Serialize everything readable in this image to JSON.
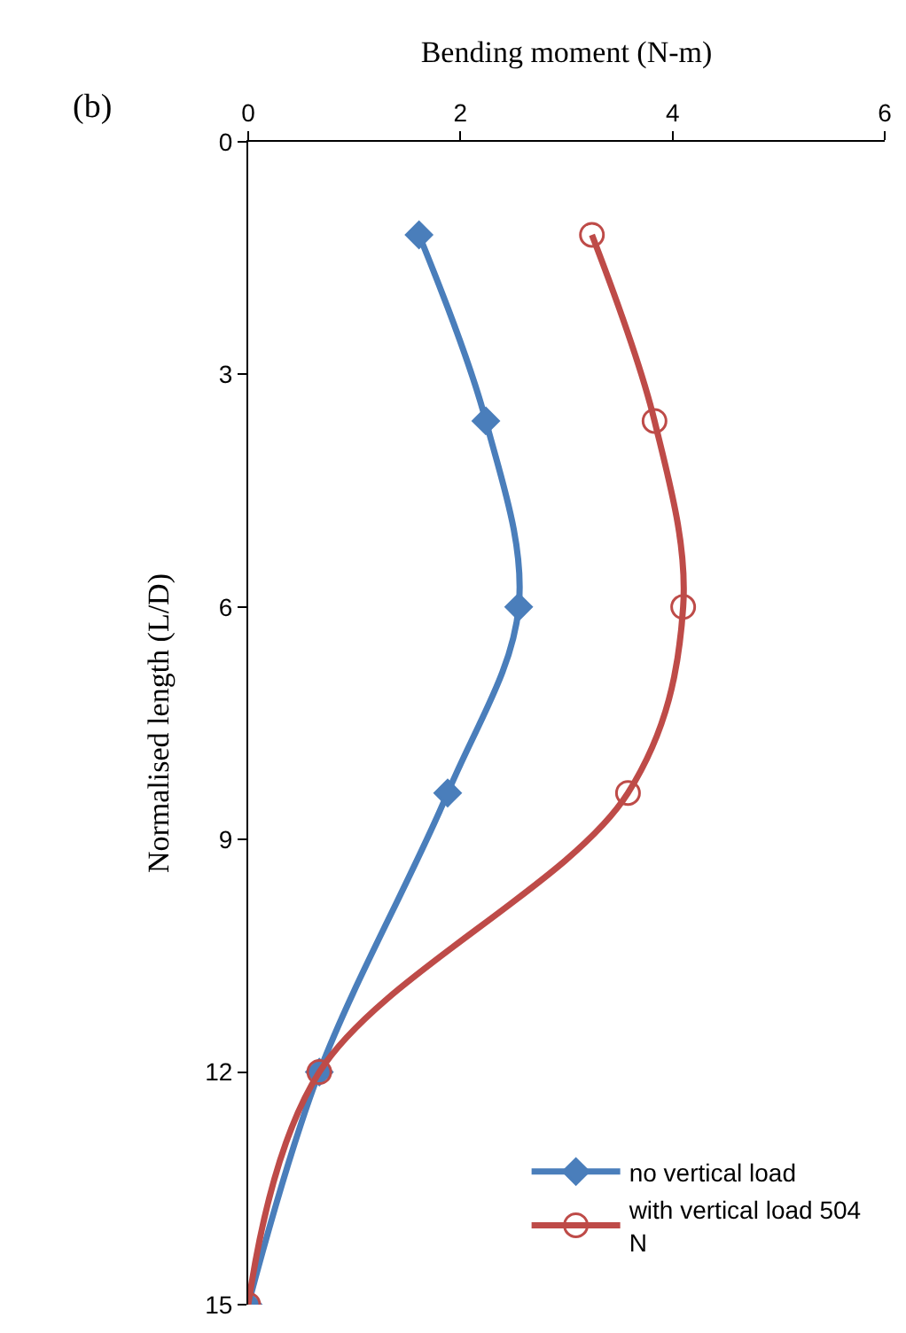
{
  "chart_data": {
    "type": "line",
    "xlabel": "Bending moment (N-m)",
    "ylabel": "Normalised length (L/D)",
    "annotations": [
      "(b)"
    ],
    "xlim": [
      0,
      6
    ],
    "xticks": [
      0,
      2,
      4,
      6
    ],
    "ylim": [
      15,
      0
    ],
    "yticks": [
      0,
      3,
      6,
      9,
      12,
      15
    ],
    "legend": "bottom right",
    "line_style": "solid",
    "series": [
      {
        "name": "no vertical load",
        "color": "#4a7ebb",
        "marker": "diamond",
        "x": [
          1.61,
          2.24,
          2.55,
          1.88,
          0.67,
          0
        ],
        "values": [
          1.2,
          3.6,
          6,
          8.4,
          12,
          15
        ]
      },
      {
        "name": "with vertical load 504 N",
        "color": "#be4b48",
        "marker": "circle",
        "x": [
          3.24,
          3.83,
          4.1,
          3.58,
          0.67,
          0
        ],
        "values": [
          1.2,
          3.6,
          6,
          8.4,
          12,
          15
        ]
      }
    ]
  }
}
